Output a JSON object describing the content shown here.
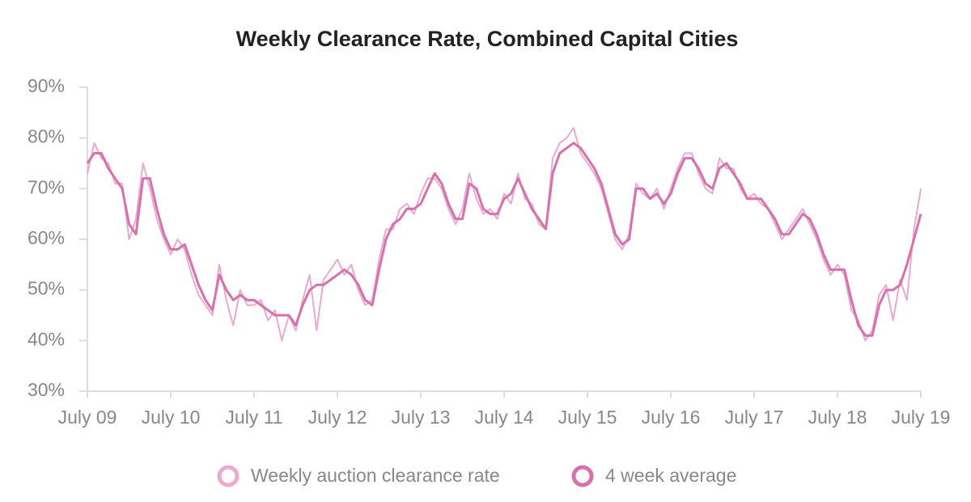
{
  "chart_data": {
    "type": "line",
    "title": "Weekly Clearance Rate, Combined Capital Cities",
    "x": [
      2009.5,
      2009.583,
      2009.667,
      2009.75,
      2009.833,
      2009.917,
      2010.0,
      2010.083,
      2010.167,
      2010.25,
      2010.333,
      2010.417,
      2010.5,
      2010.583,
      2010.667,
      2010.75,
      2010.833,
      2010.917,
      2011.0,
      2011.083,
      2011.167,
      2011.25,
      2011.333,
      2011.417,
      2011.5,
      2011.583,
      2011.667,
      2011.75,
      2011.833,
      2011.917,
      2012.0,
      2012.083,
      2012.167,
      2012.25,
      2012.333,
      2012.417,
      2012.5,
      2012.583,
      2012.667,
      2012.75,
      2012.833,
      2012.917,
      2013.0,
      2013.083,
      2013.167,
      2013.25,
      2013.333,
      2013.417,
      2013.5,
      2013.583,
      2013.667,
      2013.75,
      2013.833,
      2013.917,
      2014.0,
      2014.083,
      2014.167,
      2014.25,
      2014.333,
      2014.417,
      2014.5,
      2014.583,
      2014.667,
      2014.75,
      2014.833,
      2014.917,
      2015.0,
      2015.083,
      2015.167,
      2015.25,
      2015.333,
      2015.417,
      2015.5,
      2015.583,
      2015.667,
      2015.75,
      2015.833,
      2015.917,
      2016.0,
      2016.083,
      2016.167,
      2016.25,
      2016.333,
      2016.417,
      2016.5,
      2016.583,
      2016.667,
      2016.75,
      2016.833,
      2016.917,
      2017.0,
      2017.083,
      2017.167,
      2017.25,
      2017.333,
      2017.417,
      2017.5,
      2017.583,
      2017.667,
      2017.75,
      2017.833,
      2017.917,
      2018.0,
      2018.083,
      2018.167,
      2018.25,
      2018.333,
      2018.417,
      2018.5,
      2018.583,
      2018.667,
      2018.75,
      2018.833,
      2018.917,
      2019.0,
      2019.083,
      2019.167,
      2019.25,
      2019.333,
      2019.417,
      2019.5
    ],
    "series": [
      {
        "name": "Weekly auction clearance rate",
        "color": "#eaa9d0",
        "values": [
          73,
          79,
          76,
          75,
          71,
          71,
          60,
          64,
          75,
          70,
          64,
          60,
          57,
          60,
          58,
          53,
          49,
          47,
          45,
          55,
          48,
          43,
          50,
          47,
          47,
          48,
          44,
          46,
          40,
          45,
          42,
          48,
          53,
          42,
          52,
          54,
          56,
          53,
          55,
          50,
          47,
          48,
          56,
          62,
          62,
          66,
          67,
          65,
          69,
          72,
          72,
          70,
          66,
          63,
          66,
          73,
          68,
          65,
          66,
          64,
          69,
          67,
          73,
          68,
          67,
          63,
          62,
          76,
          79,
          80,
          82,
          77,
          75,
          73,
          70,
          65,
          60,
          58,
          61,
          71,
          69,
          68,
          70,
          66,
          70,
          74,
          77,
          77,
          73,
          70,
          69,
          76,
          74,
          74,
          70,
          68,
          69,
          67,
          66,
          63,
          60,
          62,
          64,
          66,
          63,
          60,
          56,
          53,
          55,
          53,
          46,
          44,
          40,
          42,
          49,
          51,
          44,
          52,
          48,
          62,
          70
        ]
      },
      {
        "name": "4 week average",
        "color": "#d671ad",
        "values": [
          75,
          77,
          77,
          74,
          72,
          70,
          63,
          61,
          72,
          72,
          66,
          61,
          58,
          58,
          59,
          55,
          51,
          48,
          46,
          53,
          50,
          48,
          49,
          48,
          48,
          47,
          46,
          45,
          45,
          45,
          43,
          47,
          50,
          51,
          51,
          52,
          53,
          54,
          53,
          51,
          48,
          47,
          54,
          60,
          63,
          64,
          66,
          66,
          67,
          70,
          73,
          71,
          67,
          64,
          64,
          71,
          70,
          66,
          65,
          65,
          68,
          69,
          72,
          69,
          66,
          64,
          62,
          73,
          77,
          78,
          79,
          78,
          76,
          74,
          71,
          66,
          61,
          59,
          60,
          70,
          70,
          68,
          69,
          67,
          69,
          73,
          76,
          76,
          74,
          71,
          70,
          74,
          75,
          73,
          71,
          68,
          68,
          68,
          66,
          64,
          61,
          61,
          63,
          65,
          64,
          61,
          57,
          54,
          54,
          54,
          48,
          43,
          41,
          41,
          47,
          50,
          50,
          51,
          55,
          60,
          65
        ]
      }
    ],
    "xlim": [
      2009.5,
      2019.5
    ],
    "xticks": [
      {
        "value": 2009.5,
        "label": "July 09"
      },
      {
        "value": 2010.5,
        "label": "July 10"
      },
      {
        "value": 2011.5,
        "label": "July 11"
      },
      {
        "value": 2012.5,
        "label": "July 12"
      },
      {
        "value": 2013.5,
        "label": "July 13"
      },
      {
        "value": 2014.5,
        "label": "July 14"
      },
      {
        "value": 2015.5,
        "label": "July 15"
      },
      {
        "value": 2016.5,
        "label": "July 16"
      },
      {
        "value": 2017.5,
        "label": "July 17"
      },
      {
        "value": 2018.5,
        "label": "July 18"
      },
      {
        "value": 2019.5,
        "label": "July 19"
      }
    ],
    "ylim": [
      30,
      90
    ],
    "yticks": [
      {
        "value": 30,
        "label": "30%"
      },
      {
        "value": 40,
        "label": "40%"
      },
      {
        "value": 50,
        "label": "50%"
      },
      {
        "value": 60,
        "label": "60%"
      },
      {
        "value": 70,
        "label": "70%"
      },
      {
        "value": 80,
        "label": "80%"
      },
      {
        "value": 90,
        "label": "90%"
      }
    ],
    "legend": "bottom"
  }
}
